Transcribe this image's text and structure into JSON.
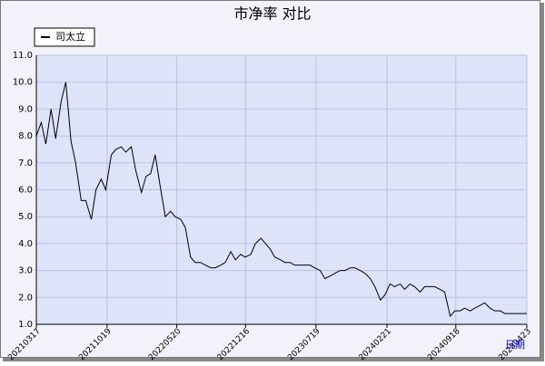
{
  "chart_data": {
    "type": "line",
    "title": "市净率  对比",
    "xlabel": "日期",
    "x": [
      "20210317",
      "20210401",
      "20210415",
      "20210501",
      "20210515",
      "20210601",
      "20210615",
      "20210701",
      "20210715",
      "20210801",
      "20210815",
      "20210901",
      "20210915",
      "20211001",
      "20211015",
      "20211101",
      "20211115",
      "20211201",
      "20211215",
      "20220101",
      "20220115",
      "20220201",
      "20220215",
      "20220301",
      "20220315",
      "20220401",
      "20220415",
      "20220501",
      "20220515",
      "20220601",
      "20220615",
      "20220701",
      "20220715",
      "20220801",
      "20220815",
      "20220901",
      "20220915",
      "20221001",
      "20221015",
      "20221101",
      "20221115",
      "20221201",
      "20221215",
      "20230101",
      "20230115",
      "20230201",
      "20230215",
      "20230301",
      "20230315",
      "20230401",
      "20230415",
      "20230501",
      "20230515",
      "20230601",
      "20230615",
      "20230701",
      "20230715",
      "20230801",
      "20230815",
      "20230901",
      "20230915",
      "20231001",
      "20231015",
      "20231101",
      "20231115",
      "20231201",
      "20231215",
      "20240101",
      "20240115",
      "20240201",
      "20240215",
      "20240301",
      "20240315",
      "20240401",
      "20240415",
      "20240501",
      "20240515",
      "20240601",
      "20240615",
      "20240701",
      "20240715",
      "20240801",
      "20240815",
      "20240901",
      "20240915",
      "20241001",
      "20241015",
      "20241101",
      "20241115",
      "20241201",
      "20241215",
      "20250101",
      "20250115",
      "20250201",
      "20250215",
      "20250301",
      "20250315",
      "20250401",
      "20250415",
      "20250423"
    ],
    "series": [
      {
        "name": "司太立",
        "color": "#000000",
        "values": [
          8.0,
          8.5,
          7.7,
          9.0,
          7.9,
          9.3,
          10.0,
          7.8,
          7.0,
          5.6,
          5.6,
          4.9,
          6.0,
          6.4,
          6.0,
          7.3,
          7.5,
          7.6,
          7.4,
          7.6,
          6.7,
          5.9,
          6.5,
          6.6,
          7.3,
          6.0,
          5.0,
          5.2,
          5.0,
          4.9,
          4.6,
          3.5,
          3.3,
          3.3,
          3.2,
          3.1,
          3.1,
          3.2,
          3.3,
          3.7,
          3.4,
          3.6,
          3.5,
          3.6,
          4.0,
          4.2,
          4.0,
          3.8,
          3.5,
          3.4,
          3.3,
          3.3,
          3.2,
          3.2,
          3.2,
          3.2,
          3.1,
          3.0,
          2.7,
          2.8,
          2.9,
          3.0,
          3.0,
          3.1,
          3.1,
          3.0,
          2.9,
          2.7,
          2.4,
          1.9,
          2.1,
          2.5,
          2.4,
          2.5,
          2.3,
          2.5,
          2.4,
          2.2,
          2.4,
          2.4,
          2.4,
          2.3,
          2.2,
          1.3,
          1.5,
          1.5,
          1.6,
          1.5,
          1.6,
          1.7,
          1.8,
          1.6,
          1.5,
          1.5,
          1.4,
          1.4,
          1.4,
          1.4,
          1.4,
          1.4
        ]
      }
    ],
    "xlim": [
      "20210317",
      "20250423"
    ],
    "xticks": [
      "20210317",
      "20211019",
      "20220520",
      "20221216",
      "20230719",
      "20240221",
      "20240918",
      "20250423"
    ],
    "ylim": [
      1,
      11
    ],
    "yticks": [
      {
        "value": 1,
        "label": "1.0"
      },
      {
        "value": 2,
        "label": "2.0"
      },
      {
        "value": 3,
        "label": "3.0"
      },
      {
        "value": 4,
        "label": "4.0"
      },
      {
        "value": 5,
        "label": "5.0"
      },
      {
        "value": 6,
        "label": "6.0"
      },
      {
        "value": 7,
        "label": "7.0"
      },
      {
        "value": 8,
        "label": "8.0"
      },
      {
        "value": 9,
        "label": "9.0"
      },
      {
        "value": 10,
        "label": "10.0"
      },
      {
        "value": 11,
        "label": "11.0"
      }
    ],
    "grid": true
  }
}
